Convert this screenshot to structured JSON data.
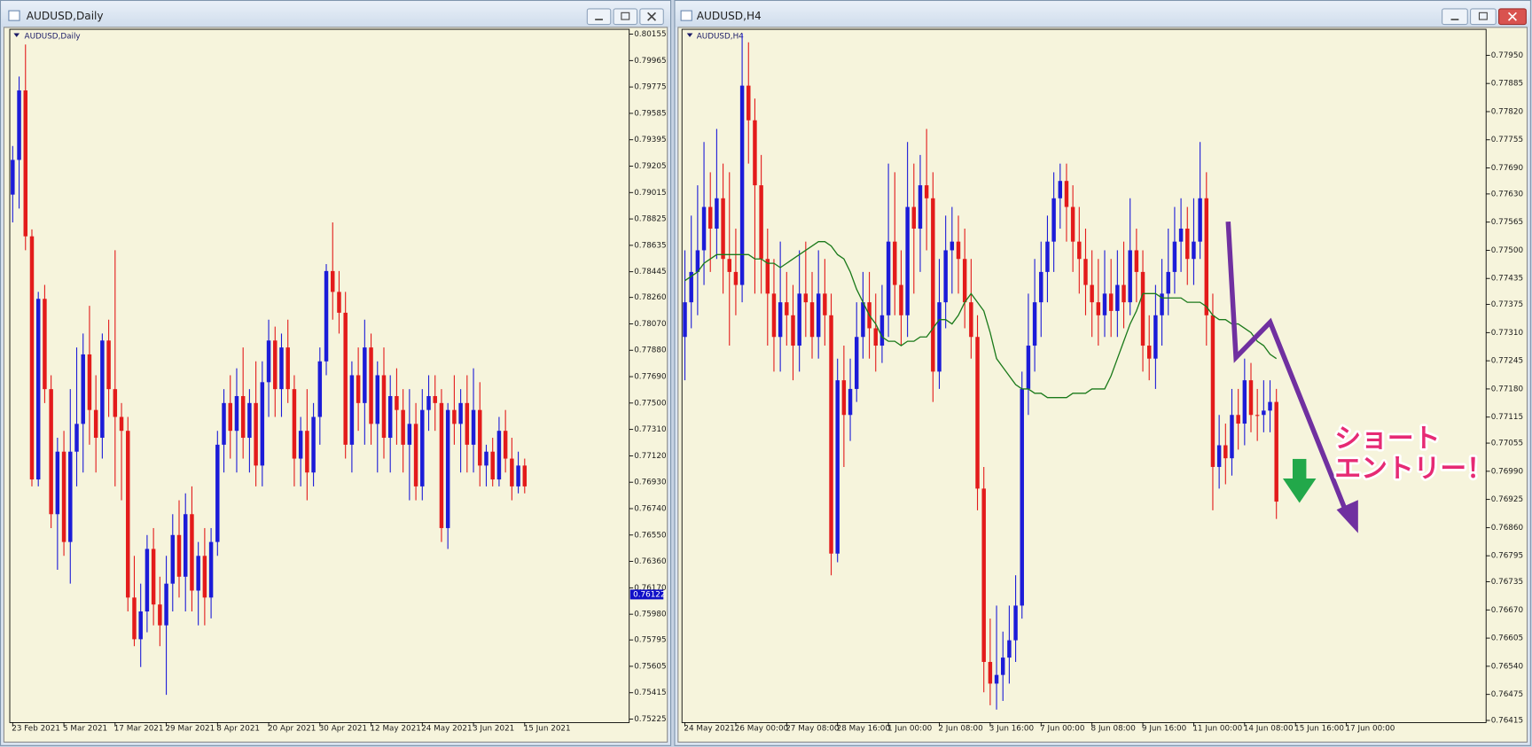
{
  "chart_data": [
    {
      "type": "candlestick",
      "window_title": "AUDUSD,Daily",
      "title": "AUDUSD,Daily",
      "up_color": "#1c1cd8",
      "down_color": "#e31b1b",
      "grid": false,
      "ylim": [
        0.752,
        0.8019
      ],
      "yticks": [
        0.80155,
        0.79965,
        0.79775,
        0.79585,
        0.79395,
        0.79205,
        0.79015,
        0.78825,
        0.78635,
        0.78445,
        {
          "value": 0.7826,
          "label": "0.78260"
        },
        {
          "value": 0.7807,
          "label": "0.78070"
        },
        {
          "value": 0.7788,
          "label": "0.77880"
        },
        {
          "value": 0.7769,
          "label": "0.77690"
        },
        {
          "value": 0.775,
          "label": "0.77500"
        },
        {
          "value": 0.7731,
          "label": "0.77310"
        },
        {
          "value": 0.7712,
          "label": "0.77120"
        },
        {
          "value": 0.7693,
          "label": "0.76930"
        },
        {
          "value": 0.7674,
          "label": "0.76740"
        },
        {
          "value": 0.7655,
          "label": "0.76550"
        },
        {
          "value": 0.7636,
          "label": "0.76360"
        },
        {
          "value": 0.7617,
          "label": "0.76170"
        },
        {
          "value": 0.7598,
          "label": "0.75980"
        },
        0.75795,
        0.75605,
        0.75415,
        0.75225
      ],
      "current_price": 0.76122,
      "categories": [
        "23 Feb 2021",
        null,
        null,
        null,
        null,
        null,
        null,
        null,
        "5 Mar 2021",
        null,
        null,
        null,
        null,
        null,
        null,
        null,
        "17 Mar 2021",
        null,
        null,
        null,
        null,
        null,
        null,
        null,
        "29 Mar 2021",
        null,
        null,
        null,
        null,
        null,
        null,
        null,
        "8 Apr 2021",
        null,
        null,
        null,
        null,
        null,
        null,
        null,
        "20 Apr 2021",
        null,
        null,
        null,
        null,
        null,
        null,
        null,
        "30 Apr 2021",
        null,
        null,
        null,
        null,
        null,
        null,
        null,
        "12 May 2021",
        null,
        null,
        null,
        null,
        null,
        null,
        null,
        "24 May 2021",
        null,
        null,
        null,
        null,
        null,
        null,
        null,
        "3 Jun 2021",
        null,
        null,
        null,
        null,
        null,
        null,
        null,
        "15 Jun 2021"
      ],
      "open": [
        0.79,
        0.7925,
        0.7975,
        0.787,
        0.7695,
        0.7825,
        0.776,
        0.767,
        0.7715,
        0.765,
        0.7715,
        0.7735,
        0.7785,
        0.7745,
        0.7725,
        0.7795,
        0.776,
        0.774,
        0.773,
        0.761,
        0.758,
        0.76,
        0.7645,
        0.7605,
        0.759,
        0.762,
        0.7655,
        0.7625,
        0.767,
        0.7615,
        0.764,
        0.761,
        0.765,
        0.772,
        0.775,
        0.773,
        0.7755,
        0.7725,
        0.775,
        0.7705,
        0.7765,
        0.7795,
        0.776,
        0.779,
        0.776,
        0.771,
        0.773,
        0.77,
        0.774,
        0.778,
        0.7845,
        0.783,
        0.7815,
        0.772,
        0.777,
        0.775,
        0.779,
        0.7735,
        0.777,
        0.7725,
        0.7755,
        0.7745,
        0.772,
        0.7735,
        0.769,
        0.7745,
        0.7755,
        0.775,
        0.766,
        0.7745,
        0.7735,
        0.775,
        0.772,
        0.7745,
        0.7705,
        0.7715,
        0.7695,
        0.773,
        0.771,
        0.769,
        0.7705
      ],
      "high": [
        0.7935,
        0.7985,
        0.8008,
        0.7875,
        0.783,
        0.7835,
        0.777,
        0.7725,
        0.773,
        0.776,
        0.779,
        0.78,
        0.782,
        0.777,
        0.78,
        0.781,
        0.786,
        0.775,
        0.774,
        0.764,
        0.762,
        0.7655,
        0.766,
        0.7625,
        0.764,
        0.767,
        0.768,
        0.7685,
        0.769,
        0.765,
        0.766,
        0.766,
        0.773,
        0.776,
        0.777,
        0.7775,
        0.779,
        0.776,
        0.778,
        0.778,
        0.781,
        0.7805,
        0.78,
        0.781,
        0.777,
        0.774,
        0.776,
        0.775,
        0.779,
        0.785,
        0.788,
        0.7845,
        0.783,
        0.778,
        0.779,
        0.781,
        0.78,
        0.778,
        0.779,
        0.777,
        0.7775,
        0.776,
        0.776,
        0.775,
        0.776,
        0.777,
        0.777,
        0.776,
        0.775,
        0.777,
        0.776,
        0.777,
        0.7775,
        0.7765,
        0.772,
        0.7725,
        0.774,
        0.7745,
        0.7725,
        0.7715,
        0.771
      ],
      "low": [
        0.788,
        0.789,
        0.786,
        0.769,
        0.769,
        0.775,
        0.766,
        0.763,
        0.764,
        0.762,
        0.769,
        0.77,
        0.772,
        0.77,
        0.771,
        0.774,
        0.769,
        0.768,
        0.76,
        0.7575,
        0.756,
        0.7585,
        0.759,
        0.7575,
        0.754,
        0.76,
        0.761,
        0.76,
        0.76,
        0.759,
        0.759,
        0.7595,
        0.764,
        0.77,
        0.771,
        0.77,
        0.771,
        0.77,
        0.769,
        0.769,
        0.774,
        0.774,
        0.774,
        0.775,
        0.769,
        0.769,
        0.768,
        0.769,
        0.772,
        0.777,
        0.781,
        0.78,
        0.771,
        0.77,
        0.773,
        0.772,
        0.772,
        0.77,
        0.771,
        0.77,
        0.772,
        0.77,
        0.768,
        0.768,
        0.768,
        0.773,
        0.773,
        0.765,
        0.7645,
        0.772,
        0.77,
        0.77,
        0.77,
        0.769,
        0.769,
        0.769,
        0.769,
        0.77,
        0.768,
        0.7685,
        0.7685
      ],
      "close": [
        0.7925,
        0.7975,
        0.787,
        0.7695,
        0.7825,
        0.776,
        0.767,
        0.7715,
        0.765,
        0.7715,
        0.7735,
        0.7785,
        0.7745,
        0.7725,
        0.7795,
        0.776,
        0.774,
        0.773,
        0.761,
        0.758,
        0.76,
        0.7645,
        0.7605,
        0.759,
        0.762,
        0.7655,
        0.7625,
        0.767,
        0.7615,
        0.764,
        0.761,
        0.765,
        0.772,
        0.775,
        0.773,
        0.7755,
        0.7725,
        0.775,
        0.7705,
        0.7765,
        0.7795,
        0.776,
        0.779,
        0.776,
        0.771,
        0.773,
        0.77,
        0.774,
        0.778,
        0.7845,
        0.783,
        0.7815,
        0.772,
        0.777,
        0.775,
        0.779,
        0.7735,
        0.777,
        0.7725,
        0.7755,
        0.7745,
        0.772,
        0.7735,
        0.769,
        0.7745,
        0.7755,
        0.775,
        0.766,
        0.7745,
        0.7735,
        0.775,
        0.772,
        0.7745,
        0.7705,
        0.7715,
        0.7695,
        0.773,
        0.771,
        0.769,
        0.7705,
        0.769
      ]
    },
    {
      "type": "candlestick",
      "window_title": "AUDUSD,H4",
      "title": "AUDUSD,H4",
      "up_color": "#1c1cd8",
      "down_color": "#e31b1b",
      "grid": false,
      "ylim": [
        0.7641,
        0.7801
      ],
      "yticks": [
        {
          "value": 0.7795,
          "label": "0.77950"
        },
        0.77885,
        {
          "value": 0.7782,
          "label": "0.77820"
        },
        0.77755,
        {
          "value": 0.7769,
          "label": "0.77690"
        },
        {
          "value": 0.7763,
          "label": "0.77630"
        },
        0.77565,
        {
          "value": 0.775,
          "label": "0.77500"
        },
        0.77435,
        0.77375,
        {
          "value": 0.7731,
          "label": "0.77310"
        },
        0.77245,
        {
          "value": 0.7718,
          "label": "0.77180"
        },
        0.77115,
        0.77055,
        {
          "value": 0.7699,
          "label": "0.76990"
        },
        0.76925,
        {
          "value": 0.7686,
          "label": "0.76860"
        },
        0.76795,
        0.76735,
        {
          "value": 0.7667,
          "label": "0.76670"
        },
        0.76605,
        {
          "value": 0.7654,
          "label": "0.76540"
        },
        0.76475,
        0.76415
      ],
      "categories": [
        "24 May 2021",
        null,
        null,
        null,
        null,
        null,
        null,
        null,
        "26 May 00:00",
        null,
        null,
        null,
        null,
        null,
        null,
        null,
        "27 May 08:00",
        null,
        null,
        null,
        null,
        null,
        null,
        null,
        "28 May 16:00",
        null,
        null,
        null,
        null,
        null,
        null,
        null,
        "1 Jun 00:00",
        null,
        null,
        null,
        null,
        null,
        null,
        null,
        "2 Jun 08:00",
        null,
        null,
        null,
        null,
        null,
        null,
        null,
        "3 Jun 16:00",
        null,
        null,
        null,
        null,
        null,
        null,
        null,
        "7 Jun 00:00",
        null,
        null,
        null,
        null,
        null,
        null,
        null,
        "8 Jun 08:00",
        null,
        null,
        null,
        null,
        null,
        null,
        null,
        "9 Jun 16:00",
        null,
        null,
        null,
        null,
        null,
        null,
        null,
        "11 Jun 00:00",
        null,
        null,
        null,
        null,
        null,
        null,
        null,
        "14 Jun 08:00",
        null,
        null,
        null,
        null,
        null,
        null,
        null,
        "15 Jun 16:00",
        null,
        null,
        null,
        null,
        null,
        null,
        null,
        "17 Jun 00:00"
      ],
      "open": [
        0.773,
        0.7738,
        0.7745,
        0.775,
        0.776,
        0.7755,
        0.7762,
        0.7748,
        0.7745,
        0.7742,
        0.7788,
        0.778,
        0.7765,
        0.7748,
        0.774,
        0.773,
        0.7738,
        0.7735,
        0.7728,
        0.774,
        0.7738,
        0.773,
        0.774,
        0.7735,
        0.768,
        0.772,
        0.7712,
        0.7718,
        0.773,
        0.7738,
        0.7732,
        0.7728,
        0.7735,
        0.7752,
        0.7742,
        0.7735,
        0.776,
        0.7755,
        0.7765,
        0.7762,
        0.7722,
        0.7738,
        0.775,
        0.7752,
        0.7748,
        0.7738,
        0.773,
        0.7695,
        0.7655,
        0.765,
        0.7652,
        0.7656,
        0.766,
        0.7668,
        0.7718,
        0.7728,
        0.7738,
        0.7745,
        0.7752,
        0.7762,
        0.7766,
        0.776,
        0.7752,
        0.7748,
        0.7742,
        0.7738,
        0.7735,
        0.774,
        0.7736,
        0.7742,
        0.7738,
        0.775,
        0.7745,
        0.7728,
        0.7725,
        0.7735,
        0.774,
        0.7745,
        0.7752,
        0.7755,
        0.7748,
        0.7752,
        0.7762,
        0.7735,
        0.77,
        0.7705,
        0.7702,
        0.7712,
        0.771,
        0.772,
        0.7712,
        0.7712,
        0.7713,
        0.7715,
        null,
        null,
        null,
        null,
        null,
        null,
        null,
        null,
        null,
        null,
        null
      ],
      "high": [
        0.775,
        0.7758,
        0.7765,
        0.7775,
        0.7768,
        0.7778,
        0.777,
        0.7768,
        0.7755,
        0.78,
        0.7798,
        0.7785,
        0.7772,
        0.7755,
        0.7748,
        0.7752,
        0.7745,
        0.7742,
        0.775,
        0.7752,
        0.7745,
        0.775,
        0.7748,
        0.774,
        0.7725,
        0.7728,
        0.7725,
        0.7738,
        0.7745,
        0.7745,
        0.774,
        0.7742,
        0.777,
        0.7768,
        0.775,
        0.7775,
        0.777,
        0.7772,
        0.7778,
        0.7768,
        0.7748,
        0.7758,
        0.776,
        0.7758,
        0.7755,
        0.7748,
        0.7735,
        0.77,
        0.7665,
        0.7668,
        0.7662,
        0.7668,
        0.7675,
        0.7722,
        0.774,
        0.7748,
        0.7752,
        0.7758,
        0.7768,
        0.777,
        0.777,
        0.7765,
        0.776,
        0.7755,
        0.775,
        0.7748,
        0.775,
        0.7748,
        0.775,
        0.7752,
        0.7762,
        0.7755,
        0.775,
        0.7735,
        0.7742,
        0.7748,
        0.7755,
        0.776,
        0.7762,
        0.776,
        0.7762,
        0.7775,
        0.7768,
        0.774,
        0.7712,
        0.771,
        0.7718,
        0.7718,
        0.7725,
        0.7724,
        0.7718,
        0.772,
        0.772,
        0.7718,
        null,
        null,
        null,
        null,
        null,
        null,
        null,
        null,
        null,
        null,
        null
      ],
      "low": [
        0.772,
        0.7732,
        0.7735,
        0.7742,
        0.7745,
        0.7748,
        0.774,
        0.7728,
        0.7735,
        0.7738,
        0.777,
        0.774,
        0.774,
        0.7728,
        0.7722,
        0.7722,
        0.7728,
        0.772,
        0.7722,
        0.773,
        0.7725,
        0.7725,
        0.7728,
        0.7675,
        0.7678,
        0.77,
        0.7706,
        0.7715,
        0.7725,
        0.7725,
        0.7722,
        0.7724,
        0.773,
        0.7735,
        0.7728,
        0.773,
        0.774,
        0.7745,
        0.775,
        0.7715,
        0.7718,
        0.7732,
        0.774,
        0.774,
        0.7732,
        0.7725,
        0.769,
        0.7648,
        0.7645,
        0.7644,
        0.7646,
        0.765,
        0.7655,
        0.7665,
        0.7712,
        0.7722,
        0.773,
        0.7738,
        0.7745,
        0.7755,
        0.7752,
        0.7745,
        0.774,
        0.7735,
        0.773,
        0.7728,
        0.773,
        0.773,
        0.773,
        0.7732,
        0.7735,
        0.7738,
        0.7722,
        0.772,
        0.7718,
        0.7728,
        0.7735,
        0.774,
        0.7745,
        0.7742,
        0.7742,
        0.7748,
        0.7728,
        0.769,
        0.7695,
        0.7696,
        0.7698,
        0.7704,
        0.7705,
        0.7708,
        0.7706,
        0.7708,
        0.7708,
        0.7688,
        null,
        null,
        null,
        null,
        null,
        null,
        null,
        null,
        null,
        null,
        null
      ],
      "close": [
        0.7738,
        0.7745,
        0.775,
        0.776,
        0.7755,
        0.7762,
        0.7748,
        0.7745,
        0.7742,
        0.7788,
        0.778,
        0.7765,
        0.7748,
        0.774,
        0.773,
        0.7738,
        0.7735,
        0.7728,
        0.774,
        0.7738,
        0.773,
        0.774,
        0.7735,
        0.768,
        0.772,
        0.7712,
        0.7718,
        0.773,
        0.7738,
        0.7732,
        0.7728,
        0.7735,
        0.7752,
        0.7742,
        0.7735,
        0.776,
        0.7755,
        0.7765,
        0.7762,
        0.7722,
        0.7738,
        0.775,
        0.7752,
        0.7748,
        0.7738,
        0.773,
        0.7695,
        0.7655,
        0.765,
        0.7652,
        0.7656,
        0.766,
        0.7668,
        0.7718,
        0.7728,
        0.7738,
        0.7745,
        0.7752,
        0.7762,
        0.7766,
        0.776,
        0.7752,
        0.7748,
        0.7742,
        0.7738,
        0.7735,
        0.774,
        0.7736,
        0.7742,
        0.7738,
        0.775,
        0.7745,
        0.7728,
        0.7725,
        0.7735,
        0.774,
        0.7745,
        0.7752,
        0.7755,
        0.7748,
        0.7752,
        0.7762,
        0.7735,
        0.77,
        0.7705,
        0.7702,
        0.7712,
        0.771,
        0.772,
        0.7712,
        0.7712,
        0.7713,
        0.7715,
        0.7692,
        null,
        null,
        null,
        null,
        null,
        null,
        null,
        null,
        null,
        null,
        null
      ],
      "ma": {
        "color": "#1b7a1b",
        "values": [
          0.7743,
          0.7744,
          0.7745,
          0.7747,
          0.7748,
          0.7749,
          0.7749,
          0.7749,
          0.7749,
          0.7749,
          0.7749,
          0.7748,
          0.7748,
          0.7747,
          0.7747,
          0.7746,
          0.7747,
          0.7748,
          0.7749,
          0.775,
          0.7751,
          0.7752,
          0.7752,
          0.7751,
          0.7749,
          0.7748,
          0.7745,
          0.7741,
          0.7738,
          0.7735,
          0.7733,
          0.773,
          0.7729,
          0.7729,
          0.7728,
          0.7729,
          0.7729,
          0.773,
          0.773,
          0.7732,
          0.7734,
          0.7734,
          0.7733,
          0.7735,
          0.7738,
          0.774,
          0.7738,
          0.7736,
          0.7731,
          0.7725,
          0.7723,
          0.7721,
          0.7719,
          0.7718,
          0.7718,
          0.7717,
          0.7717,
          0.7716,
          0.7716,
          0.7716,
          0.7716,
          0.7717,
          0.7717,
          0.7717,
          0.7718,
          0.7718,
          0.7718,
          0.7721,
          0.7725,
          0.7729,
          0.7733,
          0.7736,
          0.774,
          0.774,
          0.774,
          0.7739,
          0.7739,
          0.7739,
          0.7739,
          0.7738,
          0.7738,
          0.7738,
          0.7737,
          0.7735,
          0.7734,
          0.7734,
          0.7733,
          0.7733,
          0.7732,
          0.7731,
          0.7729,
          0.7728,
          0.7726,
          0.7725,
          null,
          null,
          null,
          null,
          null,
          null,
          null,
          null,
          null,
          null,
          null
        ]
      },
      "annotations": [
        "ショート",
        "エントリー！"
      ]
    }
  ]
}
